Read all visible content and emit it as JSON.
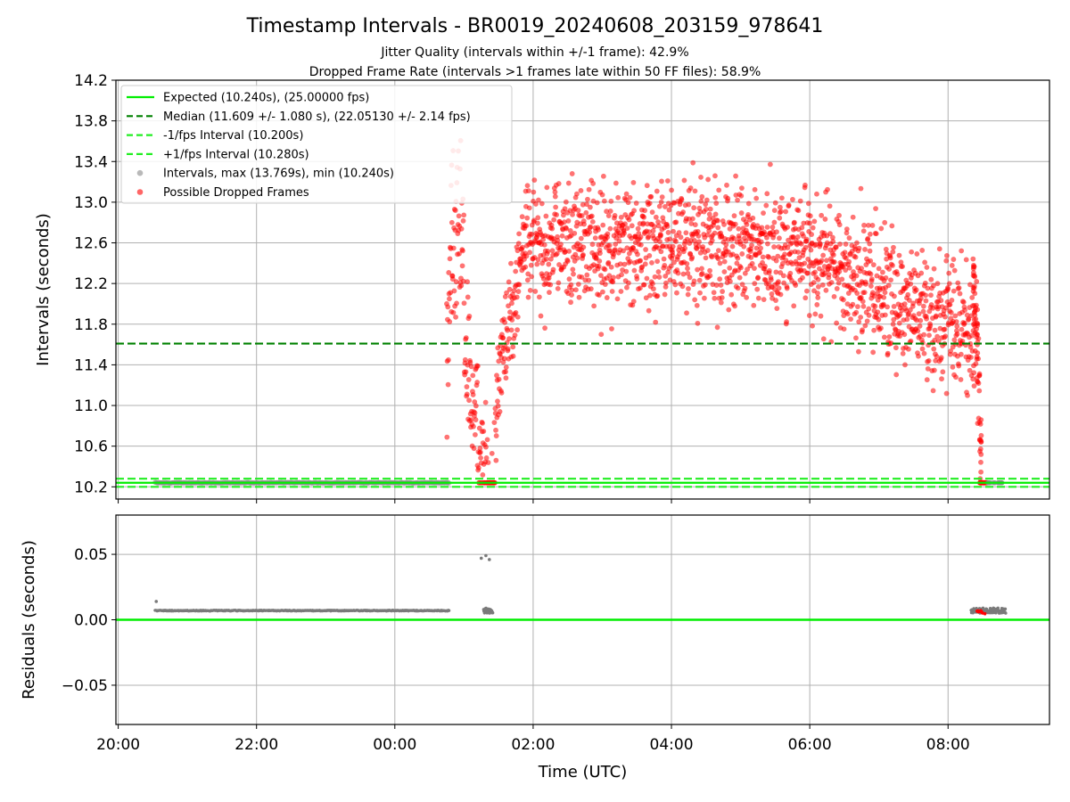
{
  "title": "Timestamp Intervals - BR0019_20240608_203159_978641",
  "subtitle1": "Jitter Quality (intervals within +/-1 frame): 42.9%",
  "subtitle2": "Dropped Frame Rate (intervals >1 frames late within 50 FF files): 58.9%",
  "colors": {
    "expected": "#00ee00",
    "median": "#008000",
    "fps_band": "#22ee22",
    "intervals": "#8a8a8a",
    "dropped": "#ff0000",
    "residuals": "#7a7a7a",
    "grid": "#b0b0b0"
  },
  "chart_data": [
    {
      "type": "scatter",
      "panel": "top",
      "ylabel": "Intervals (seconds)",
      "xlim": [
        "19:58",
        "09:28"
      ],
      "ylim": [
        10.08,
        14.2
      ],
      "yticks": [
        "10.2",
        "10.6",
        "11.0",
        "11.4",
        "11.8",
        "12.2",
        "12.6",
        "13.0",
        "13.4",
        "13.8",
        "14.2"
      ],
      "grid": true,
      "legend_position": "top-left",
      "lines": [
        {
          "name": "Expected (10.240s), (25.00000 fps)",
          "y": 10.24,
          "style": "solid"
        },
        {
          "name": "Median (11.609 +/- 1.080 s), (22.05130 +/- 2.14 fps)",
          "y": 11.609,
          "style": "dashed"
        },
        {
          "name": "-1/fps Interval (10.200s)",
          "y": 10.2,
          "style": "dashed"
        },
        {
          "name": "+1/fps Interval (10.280s)",
          "y": 10.28,
          "style": "dashed"
        }
      ],
      "series": [
        {
          "name": "Intervals, max (13.769s), min (10.240s)",
          "x_range": [
            "20:32",
            "00:47"
          ],
          "y": 10.24
        },
        {
          "name": "Possible Dropped Frames",
          "x_range": [
            "00:45",
            "08:39"
          ],
          "y_range": [
            10.24,
            13.769
          ]
        }
      ]
    },
    {
      "type": "scatter",
      "panel": "bottom",
      "xlabel": "Time (UTC)",
      "ylabel": "Residuals (seconds)",
      "xticks": [
        "20:00",
        "22:00",
        "00:00",
        "02:00",
        "04:00",
        "06:00",
        "08:00"
      ],
      "ylim": [
        -0.08,
        0.08
      ],
      "yticks": [
        "−0.05",
        "0.00",
        "0.05"
      ],
      "grid": true,
      "segments": [
        {
          "x_range": [
            "20:32",
            "00:47"
          ],
          "y": 0.007
        },
        {
          "x_range": [
            "01:17",
            "01:25"
          ],
          "y": 0.007
        },
        {
          "x_range": [
            "08:20",
            "08:50"
          ],
          "y": 0.007
        }
      ],
      "outliers": [
        {
          "x": "20:33",
          "y": 0.014
        },
        {
          "x": "01:15",
          "y": 0.047
        },
        {
          "x": "01:19",
          "y": 0.049
        },
        {
          "x": "01:22",
          "y": 0.046
        }
      ],
      "zero_line": 0.0
    }
  ],
  "legend": [
    {
      "label": "Expected (10.240s), (25.00000 fps)",
      "kind": "solid",
      "color": "#00ee00"
    },
    {
      "label": "Median (11.609 +/- 1.080 s), (22.05130 +/- 2.14 fps)",
      "kind": "dashed",
      "color": "#008000"
    },
    {
      "label": "-1/fps Interval (10.200s)",
      "kind": "dashed",
      "color": "#22ee22"
    },
    {
      "label": "+1/fps Interval (10.280s)",
      "kind": "dashed",
      "color": "#22ee22"
    },
    {
      "label": "Intervals, max (13.769s), min (10.240s)",
      "kind": "dot",
      "color": "#8a8a8a"
    },
    {
      "label": "Possible Dropped Frames",
      "kind": "dot",
      "color": "#ff0000"
    }
  ]
}
